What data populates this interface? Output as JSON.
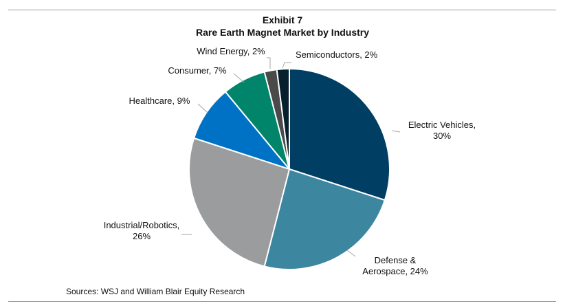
{
  "chart_data": {
    "type": "pie",
    "title": "Exhibit 7",
    "subtitle": "Rare Earth Magnet Market by Industry",
    "slices": [
      {
        "name": "Electric Vehicles",
        "value": 30,
        "label_lines": [
          "Electric Vehicles,",
          "30%"
        ],
        "color": "#003f63"
      },
      {
        "name": "Defense & Aerospace",
        "value": 24,
        "label_lines": [
          "Defense &",
          "Aerospace, 24%"
        ],
        "color": "#3d86a0"
      },
      {
        "name": "Industrial/Robotics",
        "value": 26,
        "label_lines": [
          "Industrial/Robotics,",
          "26%"
        ],
        "color": "#9b9c9e"
      },
      {
        "name": "Healthcare",
        "value": 9,
        "label_lines": [
          "Healthcare, 9%"
        ],
        "color": "#0072c6"
      },
      {
        "name": "Consumer",
        "value": 7,
        "label_lines": [
          "Consumer, 7%"
        ],
        "color": "#00856a"
      },
      {
        "name": "Wind Energy",
        "value": 2,
        "label_lines": [
          "Wind Energy, 2%"
        ],
        "color": "#4a4a4a"
      },
      {
        "name": "Semiconductors",
        "value": 2,
        "label_lines": [
          "Semiconductors, 2%"
        ],
        "color": "#07202e"
      }
    ]
  },
  "footer": {
    "source": "Sources: WSJ and William Blair Equity Research"
  }
}
